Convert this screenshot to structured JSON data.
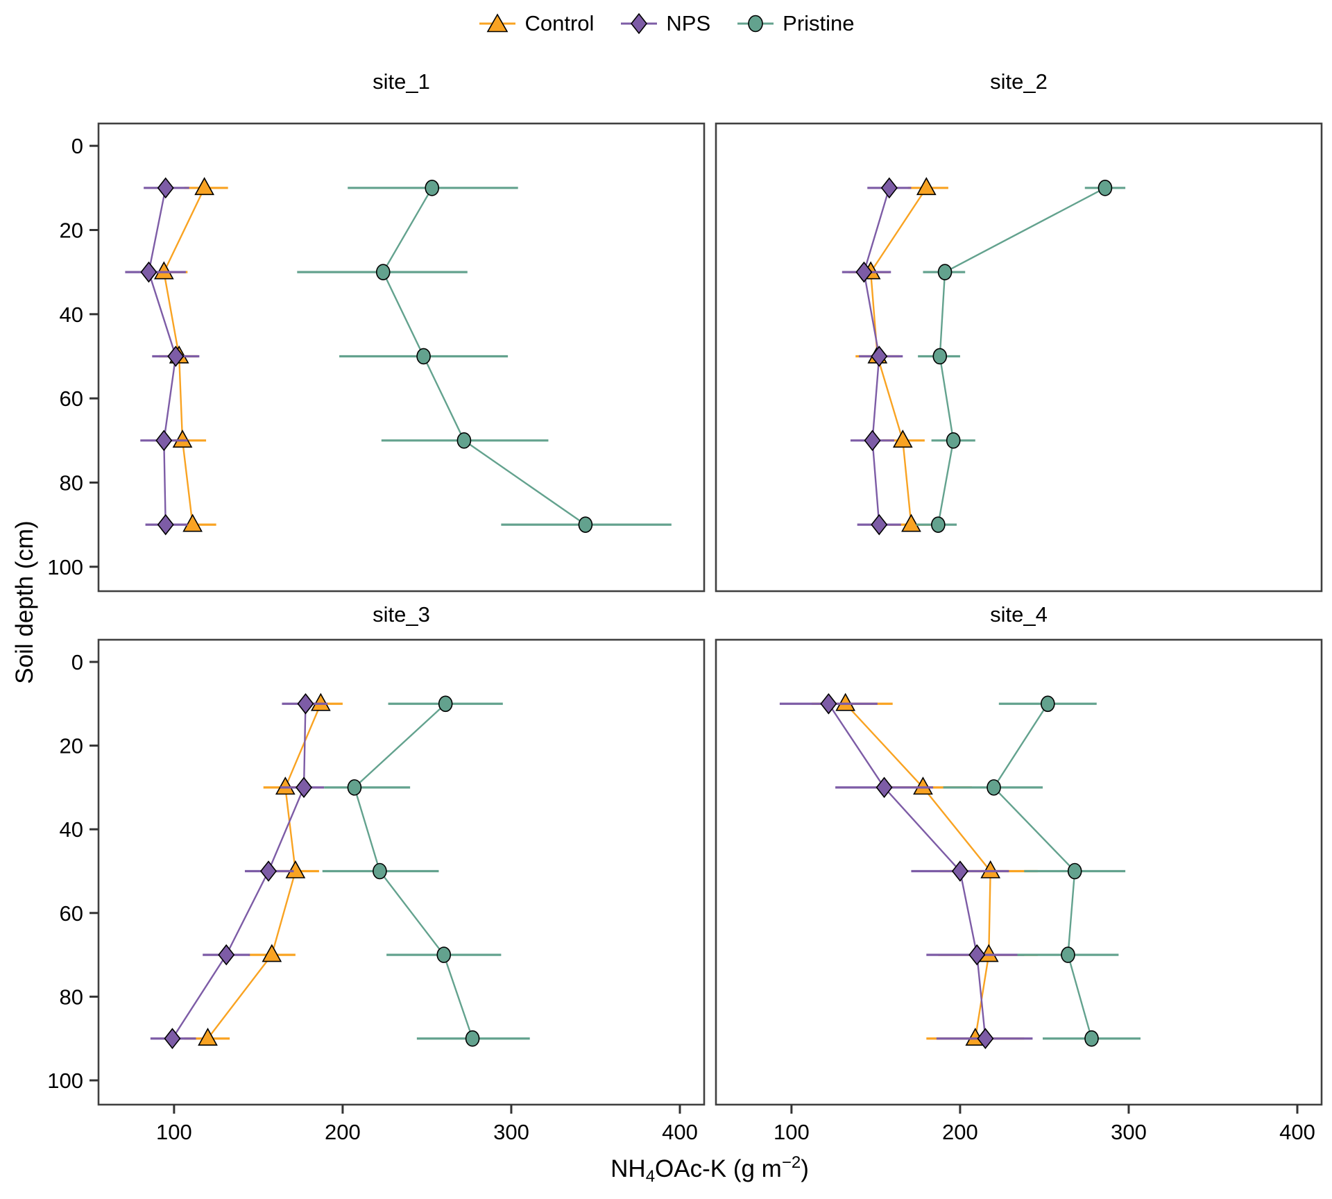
{
  "chart_data": {
    "type": "line",
    "description": "Faceted soil depth profiles of exchangeable potassium with points, connecting lines and horizontal error bars",
    "x_axis": {
      "label_full": "NH4OAc-K (g m-2)",
      "label_parts": {
        "p1": "NH",
        "sub": "4",
        "p2": "OAc-K (g m",
        "sup": "−2",
        "p3": ")"
      },
      "tick_labels": [
        "100",
        "200",
        "300",
        "400"
      ],
      "tick_values": [
        100,
        200,
        300,
        400
      ],
      "range": [
        55,
        415
      ]
    },
    "y_axis": {
      "label": "Soil depth (cm)",
      "tick_labels": [
        "0",
        "20",
        "40",
        "60",
        "80",
        "100"
      ],
      "tick_values": [
        0,
        20,
        40,
        60,
        80,
        100
      ],
      "range": [
        -5,
        106
      ],
      "inverted": true
    },
    "depths": [
      10,
      30,
      50,
      70,
      90
    ],
    "series_meta": [
      {
        "name": "Control",
        "marker": "triangle",
        "color": "#F9A322"
      },
      {
        "name": "NPS",
        "marker": "diamond",
        "color": "#7D5CA6"
      },
      {
        "name": "Pristine",
        "marker": "circle",
        "color": "#63A28E"
      }
    ],
    "facets": [
      {
        "title": "site_1",
        "series": [
          {
            "name": "Control",
            "values": [
              118,
              94,
              103,
              105,
              111
            ],
            "lo": [
              106,
              81,
              91,
              100,
              107
            ],
            "hi": [
              132,
              108,
              114,
              119,
              125
            ]
          },
          {
            "name": "NPS",
            "values": [
              95,
              85,
              101,
              94,
              95
            ],
            "lo": [
              82,
              71,
              87,
              80,
              83
            ],
            "hi": [
              109,
              107,
              115,
              108,
              108
            ]
          },
          {
            "name": "Pristine",
            "values": [
              253,
              224,
              248,
              272,
              344
            ],
            "lo": [
              203,
              173,
              198,
              223,
              294
            ],
            "hi": [
              304,
              274,
              298,
              322,
              395
            ]
          }
        ]
      },
      {
        "title": "site_2",
        "series": [
          {
            "name": "Control",
            "values": [
              180,
              147,
              151,
              166,
              171
            ],
            "lo": [
              169,
              134,
              138,
              154,
              158
            ],
            "hi": [
              193,
              158,
              164,
              179,
              184
            ]
          },
          {
            "name": "NPS",
            "values": [
              158,
              143,
              152,
              148,
              152
            ],
            "lo": [
              145,
              130,
              140,
              135,
              139
            ],
            "hi": [
              171,
              159,
              166,
              161,
              165
            ]
          },
          {
            "name": "Pristine",
            "values": [
              286,
              191,
              188,
              196,
              187
            ],
            "lo": [
              274,
              178,
              175,
              183,
              174
            ],
            "hi": [
              298,
              203,
              200,
              209,
              198
            ]
          }
        ]
      },
      {
        "title": "site_3",
        "series": [
          {
            "name": "Control",
            "values": [
              187,
              166,
              172,
              158,
              120
            ],
            "lo": [
              175,
              153,
              158,
              144,
              106
            ],
            "hi": [
              200,
              180,
              186,
              172,
              133
            ]
          },
          {
            "name": "NPS",
            "values": [
              178,
              177,
              156,
              131,
              99
            ],
            "lo": [
              164,
              163,
              142,
              117,
              86
            ],
            "hi": [
              191,
              189,
              171,
              145,
              113
            ]
          },
          {
            "name": "Pristine",
            "values": [
              261,
              207,
              222,
              260,
              277
            ],
            "lo": [
              227,
              189,
              188,
              226,
              244
            ],
            "hi": [
              295,
              240,
              257,
              294,
              311
            ]
          }
        ]
      },
      {
        "title": "site_4",
        "series": [
          {
            "name": "Control",
            "values": [
              132,
              178,
              218,
              217,
              209
            ],
            "lo": [
              112,
              150,
              188,
              187,
              180
            ],
            "hi": [
              160,
              207,
              246,
              246,
              238
            ]
          },
          {
            "name": "NPS",
            "values": [
              122,
              155,
              200,
              210,
              215
            ],
            "lo": [
              93,
              126,
              171,
              180,
              186
            ],
            "hi": [
              151,
              184,
              229,
              238,
              243
            ]
          },
          {
            "name": "Pristine",
            "values": [
              252,
              220,
              268,
              264,
              278
            ],
            "lo": [
              223,
              190,
              238,
              234,
              249
            ],
            "hi": [
              281,
              249,
              298,
              294,
              307
            ]
          }
        ]
      }
    ],
    "layout_hints": {
      "legend_position": "top-center",
      "grid": "off",
      "panel_border_color": "#404040"
    }
  }
}
